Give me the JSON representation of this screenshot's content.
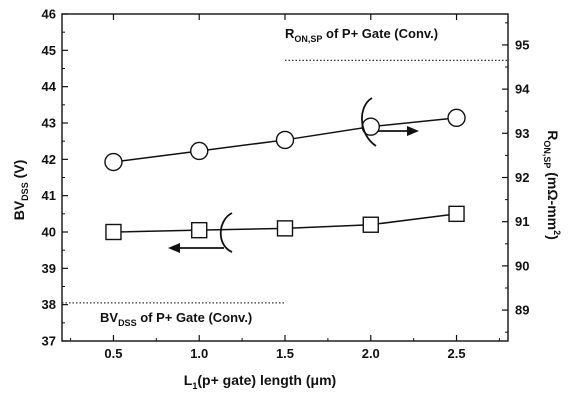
{
  "chart_data": {
    "type": "line",
    "xlabel": {
      "pre": "L",
      "sub": "1",
      "post": "(p+ gate) length (μm)"
    },
    "ylabel_left": {
      "pre": "BV",
      "sub": "DSS",
      "post": " (V)"
    },
    "ylabel_right": {
      "pre": "R",
      "sub": "ON,SP",
      "post": " (mΩ-mm",
      "sup": "2",
      "end": ")"
    },
    "x_ticks": [
      0.5,
      1.0,
      1.5,
      2.0,
      2.5
    ],
    "x_tick_labels": [
      "0.5",
      "1.0",
      "1.5",
      "2.0",
      "2.5"
    ],
    "xlim": [
      0.2,
      2.8
    ],
    "y_left_ticks": [
      37,
      38,
      39,
      40,
      41,
      42,
      43,
      44,
      45,
      46
    ],
    "y_left_tick_labels": [
      "37",
      "38",
      "39",
      "40",
      "41",
      "42",
      "43",
      "44",
      "45",
      "46"
    ],
    "ylim_left": [
      37,
      46
    ],
    "y_right_ticks": [
      89,
      90,
      91,
      92,
      93,
      94,
      95
    ],
    "y_right_tick_labels": [
      "89",
      "90",
      "91",
      "92",
      "93",
      "94",
      "95"
    ],
    "ylim_right": [
      88.3,
      95.7
    ],
    "grid": false,
    "series": [
      {
        "axis": "left",
        "marker": "square",
        "x": [
          0.5,
          1.0,
          1.5,
          2.0,
          2.5
        ],
        "values": [
          40.0,
          40.05,
          40.1,
          40.2,
          40.5
        ]
      },
      {
        "axis": "right",
        "marker": "circle",
        "x": [
          0.5,
          1.0,
          1.5,
          2.0,
          2.5
        ],
        "values": [
          92.35,
          92.6,
          92.85,
          93.15,
          93.35
        ]
      }
    ],
    "reference_lines": [
      {
        "axis": "left",
        "value": 38.05,
        "x_range": [
          0.2,
          1.5
        ],
        "style": "dotted"
      },
      {
        "axis": "right",
        "value": 94.65,
        "x_range": [
          1.5,
          2.8
        ],
        "style": "dotted"
      }
    ],
    "annotations": [
      {
        "pre": "R",
        "sub": "ON,SP",
        "post": " of P+ Gate (Conv.)"
      },
      {
        "pre": "BV",
        "sub": "DSS",
        "post": " of P+ Gate (Conv.)"
      }
    ]
  }
}
